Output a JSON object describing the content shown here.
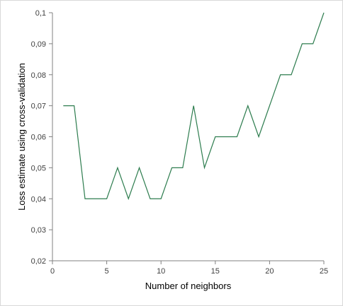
{
  "chart_data": {
    "type": "line",
    "xlabel": "Number of neighbors",
    "ylabel": "Loss estimate using cross-validation",
    "xlim": [
      0,
      25
    ],
    "ylim": [
      0.02,
      0.1
    ],
    "x_ticks": [
      0,
      5,
      10,
      15,
      20,
      25
    ],
    "x_tick_labels": [
      "0",
      "5",
      "10",
      "15",
      "20",
      "25"
    ],
    "y_ticks": [
      0.02,
      0.03,
      0.04,
      0.05,
      0.06,
      0.07,
      0.08,
      0.09,
      0.1
    ],
    "y_tick_labels": [
      "0,02",
      "0,03",
      "0,04",
      "0,05",
      "0,06",
      "0,07",
      "0,08",
      "0,09",
      "0,1"
    ],
    "grid": false,
    "legend": "none",
    "line_color": "#2e7d4f",
    "series": [
      {
        "x": [
          1,
          2,
          3,
          4,
          5,
          6,
          7,
          8,
          9,
          10,
          11,
          12,
          13,
          14,
          15,
          16,
          17,
          18,
          19,
          20,
          21,
          22,
          23,
          24,
          25
        ],
        "values": [
          0.07,
          0.07,
          0.04,
          0.04,
          0.04,
          0.05,
          0.04,
          0.05,
          0.04,
          0.04,
          0.05,
          0.05,
          0.07,
          0.05,
          0.06,
          0.06,
          0.06,
          0.07,
          0.06,
          0.07,
          0.08,
          0.08,
          0.09,
          0.09,
          0.1
        ]
      }
    ]
  }
}
